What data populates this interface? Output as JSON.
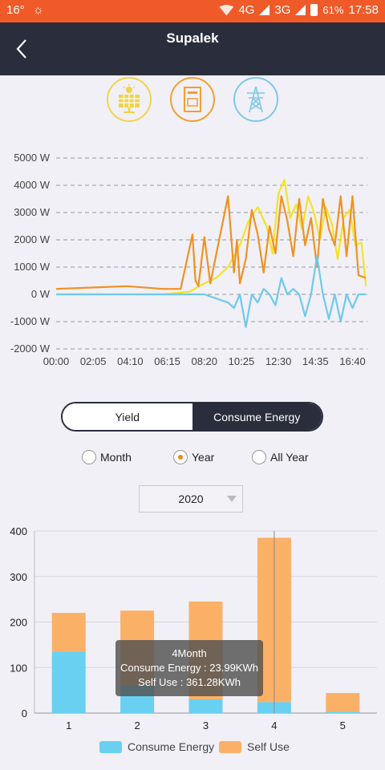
{
  "status": {
    "temperature": "16°",
    "network1": "4G",
    "network2": "3G",
    "battery": "61%",
    "time": "17:58"
  },
  "header": {
    "title": "Supalek"
  },
  "devices": [
    {
      "name": "solar-panel-icon"
    },
    {
      "name": "inverter-icon"
    },
    {
      "name": "power-tower-icon"
    }
  ],
  "line_chart": {
    "y_ticks": [
      "5000 W",
      "4000 W",
      "3000 W",
      "2000 W",
      "1000 W",
      "0 W",
      "-1000 W",
      "-2000 W"
    ],
    "x_ticks": [
      "00:00",
      "02:05",
      "04:10",
      "06:15",
      "08:20",
      "10:25",
      "12:30",
      "14:35",
      "16:40"
    ]
  },
  "toggle": {
    "yield_label": "Yield",
    "consume_label": "Consume Energy"
  },
  "radios": {
    "month": "Month",
    "year": "Year",
    "all_year": "All Year",
    "selected": "Year"
  },
  "year_select": {
    "value": "2020"
  },
  "chart_data": [
    {
      "type": "line",
      "x_range": [
        "00:00",
        "17:30"
      ],
      "ylim": [
        -2000,
        5000
      ],
      "y_unit": "W",
      "x_ticks": [
        "00:00",
        "02:05",
        "04:10",
        "06:15",
        "08:20",
        "10:25",
        "12:30",
        "14:35",
        "16:40"
      ],
      "grid": true,
      "series": [
        {
          "color": "#f5e22a",
          "x": [
            "00:00",
            "06:00",
            "07:30",
            "08:20",
            "09:00",
            "09:40",
            "10:20",
            "10:50",
            "11:20",
            "11:50",
            "12:10",
            "12:30",
            "12:50",
            "13:10",
            "13:30",
            "13:50",
            "14:10",
            "14:30",
            "14:50",
            "15:10",
            "15:30",
            "15:50",
            "16:10",
            "16:30",
            "16:50",
            "17:10",
            "17:25"
          ],
          "y": [
            0,
            0,
            100,
            400,
            600,
            1000,
            1800,
            2700,
            3200,
            2500,
            1500,
            3700,
            4200,
            2800,
            3300,
            2400,
            3600,
            3000,
            2000,
            3200,
            2600,
            1300,
            2800,
            3100,
            1800,
            1900,
            300
          ]
        },
        {
          "color": "#ef9222",
          "x": [
            "00:00",
            "02:00",
            "04:00",
            "06:00",
            "07:00",
            "07:40",
            "07:50",
            "08:00",
            "08:20",
            "08:40",
            "09:40",
            "10:00",
            "10:10",
            "10:20",
            "10:40",
            "11:00",
            "11:20",
            "11:40",
            "12:00",
            "12:20",
            "12:40",
            "13:00",
            "13:20",
            "13:40",
            "14:00",
            "14:20",
            "14:40",
            "15:00",
            "15:20",
            "15:40",
            "16:00",
            "16:20",
            "16:40",
            "17:00",
            "17:25"
          ],
          "y": [
            200,
            250,
            300,
            200,
            200,
            2200,
            500,
            300,
            2100,
            400,
            3600,
            800,
            2000,
            400,
            1300,
            3100,
            2200,
            800,
            2500,
            1500,
            3600,
            2700,
            1400,
            3500,
            1800,
            2800,
            1000,
            3500,
            2400,
            1800,
            3600,
            1400,
            3600,
            700,
            600
          ]
        },
        {
          "color": "#6fc9ec",
          "x": [
            "00:00",
            "06:00",
            "08:20",
            "09:40",
            "10:00",
            "10:20",
            "10:40",
            "11:00",
            "11:20",
            "11:40",
            "12:00",
            "12:20",
            "12:40",
            "13:00",
            "13:20",
            "13:40",
            "14:00",
            "14:20",
            "14:40",
            "15:00",
            "15:20",
            "15:40",
            "16:00",
            "16:20",
            "16:40",
            "17:00",
            "17:25"
          ],
          "y": [
            0,
            0,
            0,
            -300,
            -500,
            0,
            -1200,
            0,
            -300,
            200,
            0,
            -400,
            600,
            0,
            200,
            0,
            -800,
            0,
            1400,
            0,
            -900,
            0,
            -1000,
            0,
            -500,
            0,
            0
          ]
        }
      ]
    },
    {
      "type": "bar",
      "stacked": true,
      "categories": [
        "1",
        "2",
        "3",
        "4",
        "5"
      ],
      "ylim": [
        0,
        400
      ],
      "y_ticks": [
        "0",
        "100",
        "200",
        "300",
        "400"
      ],
      "series": [
        {
          "name": "Consume Energy",
          "color": "#69d0f2",
          "values": [
            135,
            60,
            30,
            24,
            3
          ]
        },
        {
          "name": "Self Use",
          "color": "#fbb067",
          "values": [
            85,
            165,
            215,
            361,
            41
          ]
        }
      ],
      "highlight_index": 3
    }
  ],
  "tooltip": {
    "title": "4Month",
    "line1": "Consume Energy : 23.99KWh",
    "line2": "Self Use : 361.28KWh"
  },
  "legend": {
    "consume": "Consume Energy",
    "self_use": "Self Use"
  }
}
